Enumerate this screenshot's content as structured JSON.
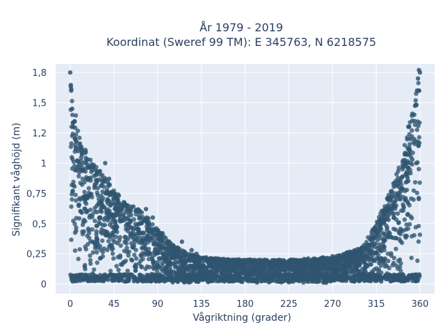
{
  "chart_data": {
    "type": "scatter",
    "title_line1": "År 1979 - 2019",
    "title_line2": "Koordinat (Sweref 99 TM): E 345763, N 6218575",
    "xlabel": "Vågriktning (grader)",
    "ylabel": "Signifikant våghöjd (m)",
    "xlim": [
      -15,
      375
    ],
    "ylim": [
      -0.08,
      1.82
    ],
    "x_ticks": [
      0,
      45,
      90,
      135,
      180,
      225,
      270,
      315,
      360
    ],
    "x_tick_labels": [
      "0",
      "45",
      "90",
      "135",
      "180",
      "225",
      "270",
      "315",
      "360"
    ],
    "y_ticks": [
      0,
      0.25,
      0.5,
      0.75,
      1,
      1.25,
      1.5,
      1.75
    ],
    "y_tick_labels": [
      "0",
      "0,25",
      "0,5",
      "0,75",
      "1",
      "1,2",
      "1,5",
      "1,8"
    ],
    "grid": true,
    "marker_color": "#2f5570",
    "background_color": "#e5ecf6",
    "envelope": {
      "direction": [
        0,
        10,
        20,
        30,
        45,
        60,
        75,
        90,
        105,
        120,
        135,
        180,
        225,
        270,
        300,
        315,
        330,
        345,
        360
      ],
      "max_height": [
        1.75,
        1.2,
        1.05,
        0.95,
        0.78,
        0.65,
        0.6,
        0.45,
        0.33,
        0.26,
        0.22,
        0.2,
        0.2,
        0.22,
        0.3,
        0.5,
        0.78,
        1.2,
        1.75
      ]
    },
    "points": [
      [
        0,
        1.75
      ],
      [
        1,
        1.6
      ],
      [
        2,
        1.45
      ],
      [
        3,
        1.3
      ],
      [
        5,
        1.2
      ],
      [
        8,
        1.1
      ],
      [
        12,
        1.07
      ],
      [
        18,
        1.03
      ],
      [
        24,
        0.97
      ],
      [
        30,
        0.93
      ],
      [
        36,
        1.0
      ],
      [
        40,
        0.87
      ],
      [
        45,
        0.75
      ],
      [
        50,
        0.73
      ],
      [
        58,
        0.65
      ],
      [
        65,
        0.64
      ],
      [
        72,
        0.6
      ],
      [
        78,
        0.62
      ],
      [
        85,
        0.55
      ],
      [
        95,
        0.42
      ],
      [
        100,
        0.35
      ],
      [
        110,
        0.3
      ],
      [
        115,
        0.35
      ],
      [
        125,
        0.28
      ],
      [
        130,
        0.25
      ],
      [
        140,
        0.22
      ],
      [
        150,
        0.21
      ],
      [
        160,
        0.2
      ],
      [
        170,
        0.2
      ],
      [
        185,
        0.2
      ],
      [
        200,
        0.2
      ],
      [
        215,
        0.2
      ],
      [
        230,
        0.2
      ],
      [
        245,
        0.21
      ],
      [
        260,
        0.22
      ],
      [
        270,
        0.23
      ],
      [
        285,
        0.26
      ],
      [
        300,
        0.3
      ],
      [
        310,
        0.38
      ],
      [
        320,
        0.5
      ],
      [
        328,
        0.62
      ],
      [
        335,
        0.72
      ],
      [
        340,
        0.85
      ],
      [
        345,
        1.0
      ],
      [
        350,
        1.2
      ],
      [
        354,
        1.4
      ],
      [
        357,
        1.6
      ],
      [
        358,
        1.7
      ],
      [
        359,
        1.77
      ],
      [
        360,
        1.75
      ]
    ]
  }
}
